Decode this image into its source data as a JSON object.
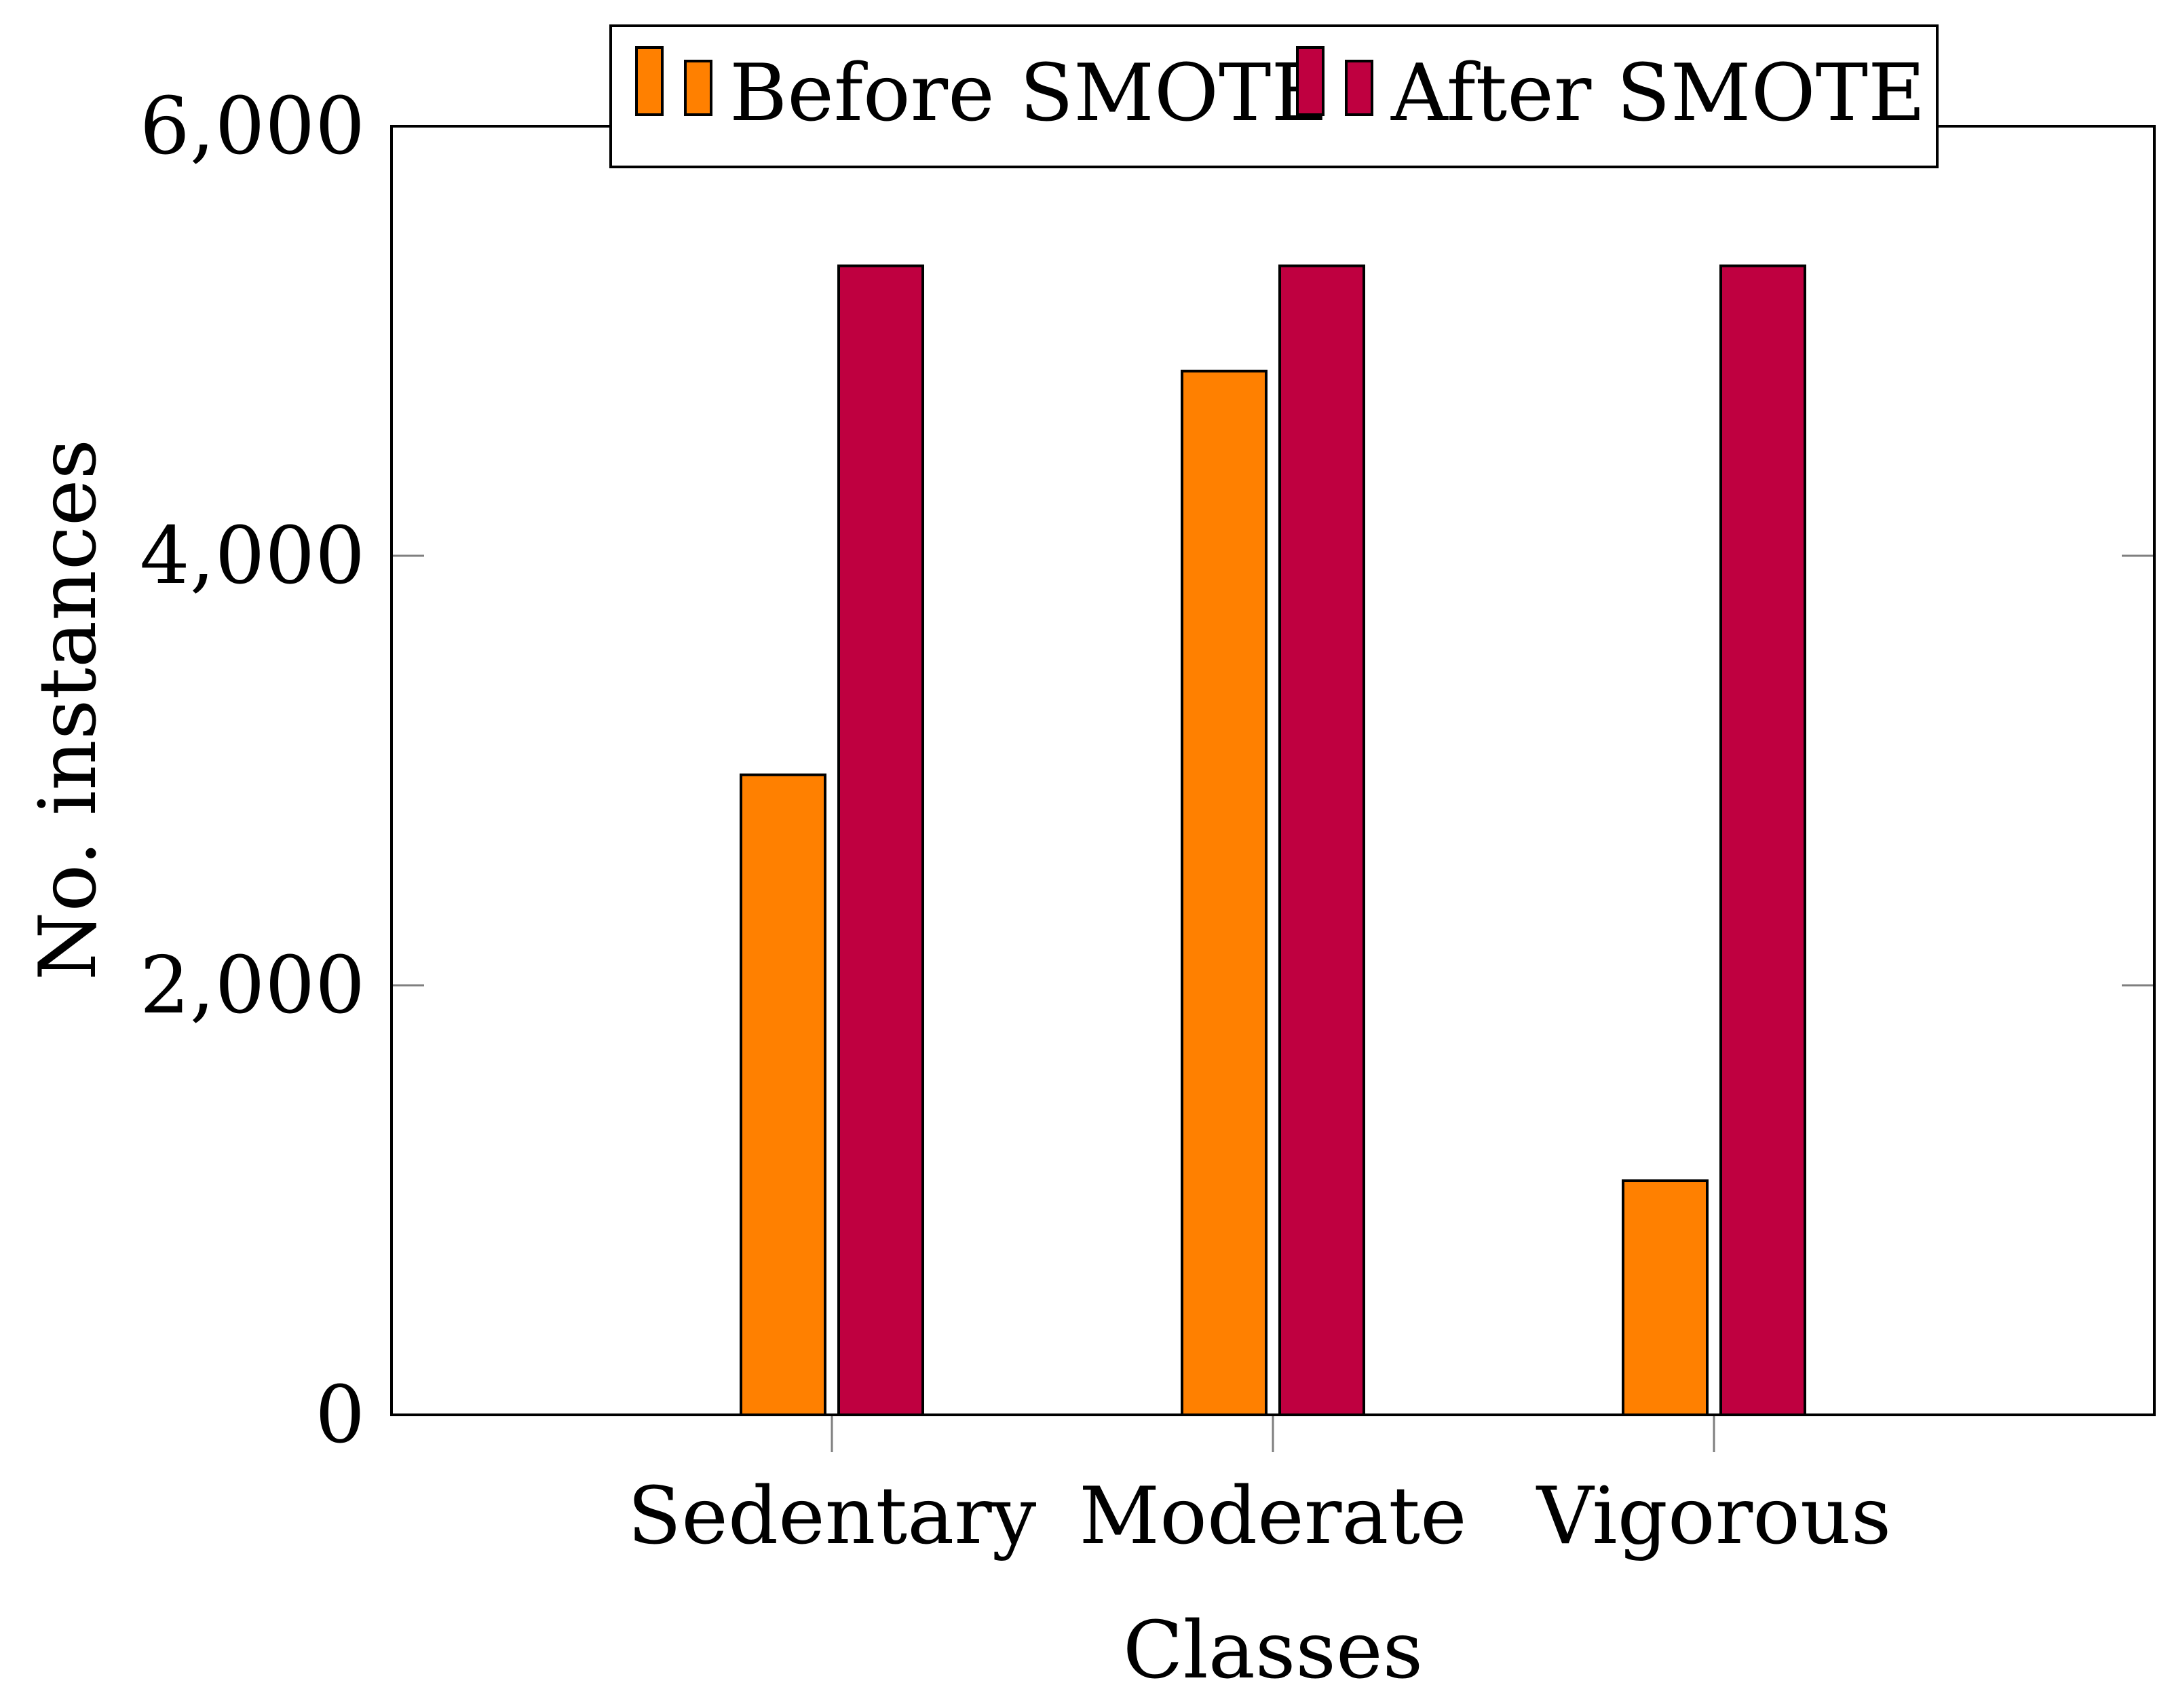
{
  "chart_data": {
    "type": "bar",
    "title": "",
    "categories": [
      "Sedentary",
      "Moderate",
      "Vigorous"
    ],
    "series": [
      {
        "name": "Before SMOTE",
        "values": [
          2980,
          4860,
          1090
        ],
        "color": "#ff8000"
      },
      {
        "name": "After SMOTE",
        "values": [
          5350,
          5350,
          5350
        ],
        "color": "#bf0040"
      }
    ],
    "xlabel": "Classes",
    "ylabel": "No. instances",
    "ylim": [
      0,
      6000
    ],
    "yticks": [
      0,
      2000,
      4000,
      6000
    ],
    "ytick_labels": [
      "0",
      "2,000",
      "4,000",
      "6,000"
    ],
    "legend": "top-center",
    "grid": false
  }
}
